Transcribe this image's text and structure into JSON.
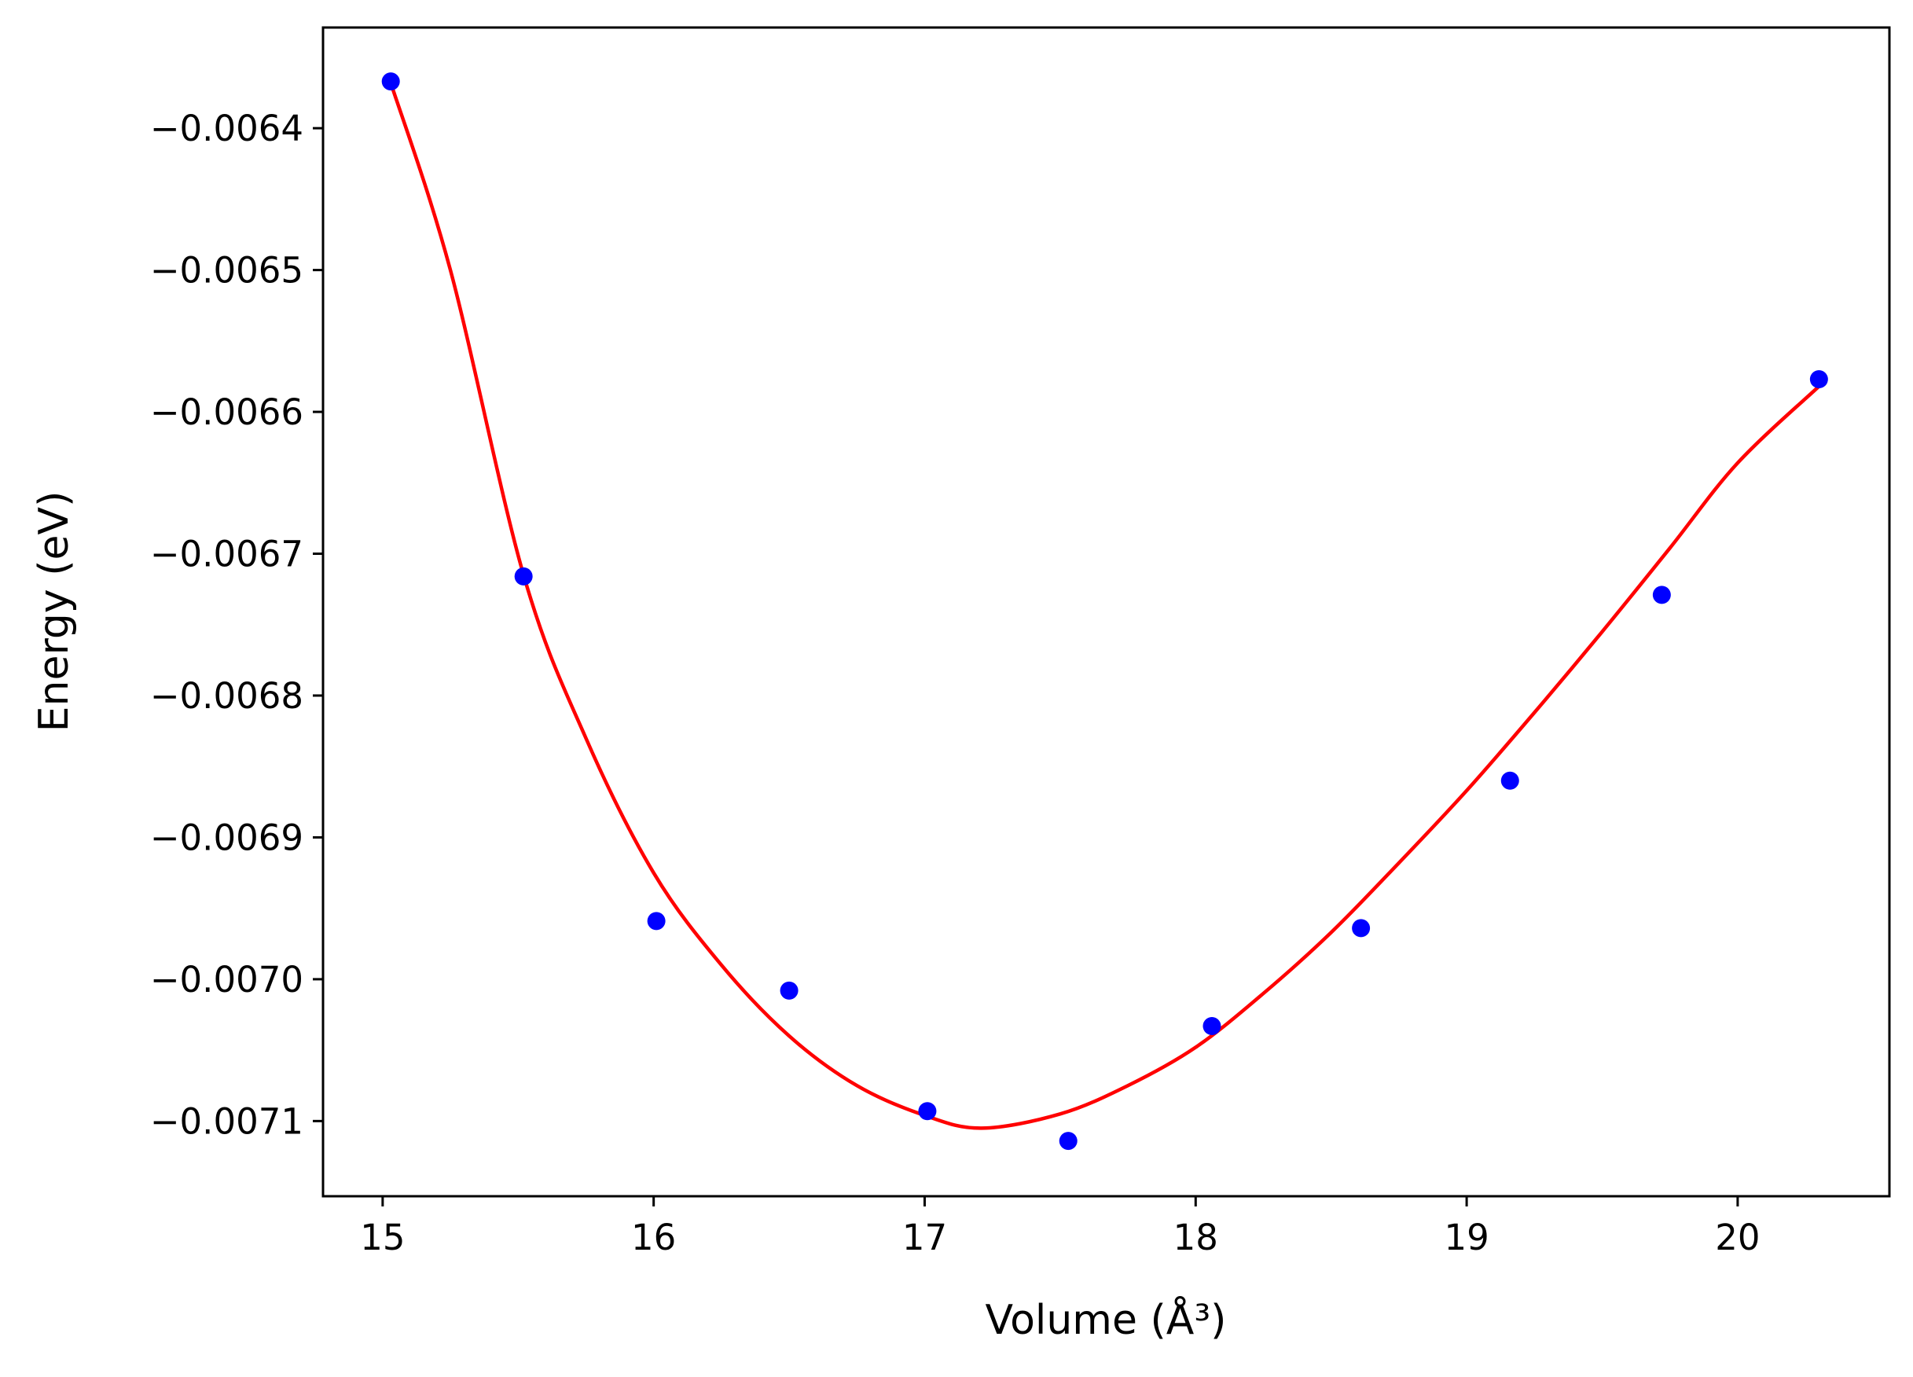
{
  "chart_data": {
    "type": "scatter",
    "title": "",
    "xlabel": "Volume (Å³)",
    "ylabel": "Energy (eV)",
    "xlim": [
      14.78,
      20.56
    ],
    "ylim": [
      -0.007153,
      -0.006329
    ],
    "x_ticks": [
      15,
      16,
      17,
      18,
      19,
      20
    ],
    "x_tick_labels": [
      "15",
      "16",
      "17",
      "18",
      "19",
      "20"
    ],
    "y_ticks": [
      -0.0064,
      -0.0065,
      -0.0066,
      -0.0067,
      -0.0068,
      -0.0069,
      -0.007,
      -0.0071
    ],
    "y_tick_labels": [
      "−0.0064",
      "−0.0065",
      "−0.0066",
      "−0.0067",
      "−0.0068",
      "−0.0069",
      "−0.0070",
      "−0.0071"
    ],
    "grid": false,
    "legend": "none",
    "series": [
      {
        "kind": "scatter",
        "color": "#0000ff",
        "points": [
          {
            "x": 15.03,
            "y": -0.006367
          },
          {
            "x": 15.52,
            "y": -0.006716
          },
          {
            "x": 16.01,
            "y": -0.006959
          },
          {
            "x": 16.5,
            "y": -0.007008
          },
          {
            "x": 17.01,
            "y": -0.007093
          },
          {
            "x": 17.53,
            "y": -0.007114
          },
          {
            "x": 18.06,
            "y": -0.007033
          },
          {
            "x": 18.61,
            "y": -0.006964
          },
          {
            "x": 19.16,
            "y": -0.00686
          },
          {
            "x": 19.72,
            "y": -0.006729
          },
          {
            "x": 20.3,
            "y": -0.006577
          }
        ]
      },
      {
        "kind": "line",
        "color": "#ff0000",
        "points": [
          {
            "x": 15.03,
            "y": -0.006368
          },
          {
            "x": 15.25,
            "y": -0.0065
          },
          {
            "x": 15.52,
            "y": -0.006715
          },
          {
            "x": 15.75,
            "y": -0.00683
          },
          {
            "x": 16.0,
            "y": -0.006925
          },
          {
            "x": 16.25,
            "y": -0.00699
          },
          {
            "x": 16.5,
            "y": -0.00704
          },
          {
            "x": 16.75,
            "y": -0.007075
          },
          {
            "x": 17.0,
            "y": -0.007096
          },
          {
            "x": 17.21,
            "y": -0.007105
          },
          {
            "x": 17.5,
            "y": -0.007095
          },
          {
            "x": 17.75,
            "y": -0.007075
          },
          {
            "x": 18.0,
            "y": -0.007048
          },
          {
            "x": 18.25,
            "y": -0.00701
          },
          {
            "x": 18.5,
            "y": -0.006967
          },
          {
            "x": 18.75,
            "y": -0.006918
          },
          {
            "x": 19.0,
            "y": -0.006867
          },
          {
            "x": 19.25,
            "y": -0.006812
          },
          {
            "x": 19.5,
            "y": -0.006755
          },
          {
            "x": 19.75,
            "y": -0.006696
          },
          {
            "x": 20.0,
            "y": -0.006636
          },
          {
            "x": 20.3,
            "y": -0.006582
          }
        ]
      }
    ]
  }
}
